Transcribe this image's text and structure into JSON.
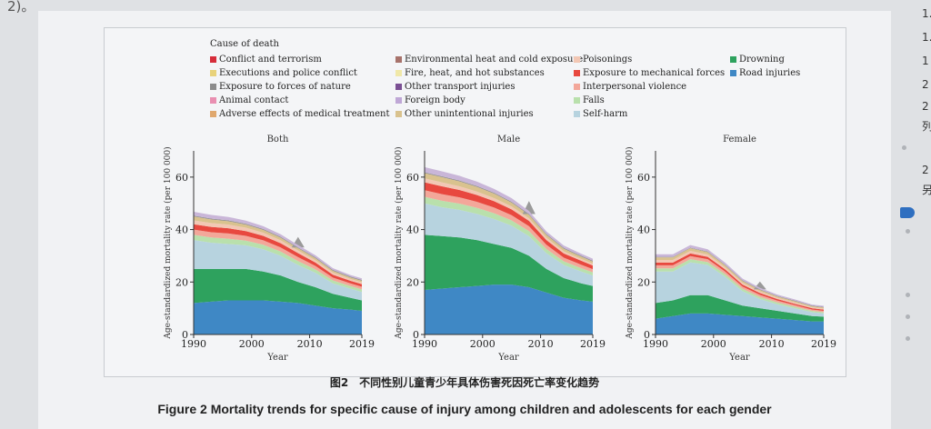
{
  "top_text": "2)。",
  "right_margin": [
    "1.",
    "1.",
    "1",
    "2",
    "2",
    "列",
    "2",
    "另"
  ],
  "legend_title": "Cause of death",
  "legend": [
    {
      "name": "Conflict and terrorism",
      "color": "#d62d3a"
    },
    {
      "name": "Executions and police conflict",
      "color": "#e8d27a"
    },
    {
      "name": "Exposure to forces of nature",
      "color": "#8c8c8c"
    },
    {
      "name": "Animal contact",
      "color": "#e98fb1"
    },
    {
      "name": "Adverse effects of medical treatment",
      "color": "#e0a86e"
    },
    {
      "name": "Environmental heat and cold exposure",
      "color": "#a7726b"
    },
    {
      "name": "Fire, heat, and hot substances",
      "color": "#f0e8a8"
    },
    {
      "name": "Other transport injuries",
      "color": "#7a4f93"
    },
    {
      "name": "Foreign body",
      "color": "#bfa7d6"
    },
    {
      "name": "Other unintentional injuries",
      "color": "#d9c28e"
    },
    {
      "name": "Poisonings",
      "color": "#f2c7b4"
    },
    {
      "name": "Exposure to mechanical forces",
      "color": "#e8483f"
    },
    {
      "name": "Interpersonal violence",
      "color": "#f3a79a"
    },
    {
      "name": "Falls",
      "color": "#b9e0ac"
    },
    {
      "name": "Self-harm",
      "color": "#b7d3df"
    },
    {
      "name": "Drowning",
      "color": "#2ea25e"
    },
    {
      "name": "Road injuries",
      "color": "#3f88c5"
    }
  ],
  "caption_cn": "图2　不同性别儿童青少年具体伤害死因死亡率变化趋势",
  "caption_en": "Figure 2   Mortality trends for specific cause of injury among children and adolescents for each gender",
  "chart_data": [
    {
      "type": "area",
      "title": "Both",
      "xlabel": "Year",
      "ylabel": "Age-standardized mortality rate (per 100 000)",
      "xlim": [
        1990,
        2019
      ],
      "ylim": [
        0,
        70
      ],
      "xticks": [
        1990,
        2000,
        2010,
        2019
      ],
      "yticks": [
        0,
        20,
        40,
        60
      ],
      "x": [
        1990,
        1993,
        1996,
        1999,
        2002,
        2005,
        2008,
        2011,
        2014,
        2017,
        2019
      ],
      "series": [
        {
          "name": "Road injuries",
          "values": [
            12,
            12.5,
            13,
            13,
            13,
            12.5,
            12,
            11,
            10,
            9.5,
            9
          ]
        },
        {
          "name": "Drowning",
          "values": [
            13,
            12.5,
            12,
            12,
            11,
            10,
            8,
            7,
            5.5,
            4.5,
            4
          ]
        },
        {
          "name": "Self-harm",
          "values": [
            11,
            10,
            9.5,
            9,
            8.5,
            7.5,
            6.5,
            5.5,
            4,
            3.5,
            3.2
          ]
        },
        {
          "name": "Falls",
          "values": [
            2,
            2,
            2,
            1.8,
            1.7,
            1.6,
            1.5,
            1.3,
            1.1,
            1,
            1
          ]
        },
        {
          "name": "Interpersonal violence",
          "values": [
            2,
            2,
            2,
            1.8,
            1.7,
            1.6,
            1.5,
            1.3,
            1.1,
            1,
            1
          ]
        },
        {
          "name": "Exposure to mechanical forces",
          "values": [
            2,
            2,
            2,
            1.8,
            1.7,
            1.6,
            1.5,
            1.3,
            1.1,
            1,
            1
          ]
        },
        {
          "name": "Poisonings",
          "values": [
            1.5,
            1.5,
            1.4,
            1.3,
            1.2,
            1.1,
            1,
            0.9,
            0.8,
            0.7,
            0.7
          ]
        },
        {
          "name": "Other unintentional injuries",
          "values": [
            1.5,
            1.4,
            1.3,
            1.2,
            1.1,
            1,
            0.9,
            0.8,
            0.7,
            0.6,
            0.6
          ]
        },
        {
          "name": "Exposure to forces of nature",
          "values": [
            0.3,
            0.3,
            0.3,
            0.3,
            0.3,
            0.3,
            0.3,
            0.3,
            0.3,
            0.3,
            0.3
          ],
          "spike": {
            "x": 2008,
            "value": 4
          }
        },
        {
          "name": "Other",
          "values": [
            1.5,
            1.4,
            1.3,
            1.2,
            1.1,
            1,
            0.9,
            0.8,
            0.7,
            0.6,
            0.6
          ]
        }
      ]
    },
    {
      "type": "area",
      "title": "Male",
      "xlabel": "Year",
      "ylabel": "Age-standardized mortality rate (per 100 000)",
      "xlim": [
        1990,
        2019
      ],
      "ylim": [
        0,
        70
      ],
      "xticks": [
        1990,
        2000,
        2010,
        2019
      ],
      "yticks": [
        0,
        20,
        40,
        60
      ],
      "x": [
        1990,
        1993,
        1996,
        1999,
        2002,
        2005,
        2008,
        2011,
        2014,
        2017,
        2019
      ],
      "series": [
        {
          "name": "Road injuries",
          "values": [
            17,
            17.5,
            18,
            18.5,
            19,
            19,
            18,
            16,
            14,
            13,
            12.5
          ]
        },
        {
          "name": "Drowning",
          "values": [
            21,
            20,
            19,
            17.5,
            15.5,
            14,
            12,
            9,
            7.5,
            6.5,
            6
          ]
        },
        {
          "name": "Self-harm",
          "values": [
            12,
            11,
            10.5,
            10,
            9.5,
            8.5,
            7.5,
            6,
            5,
            4.5,
            4
          ]
        },
        {
          "name": "Falls",
          "values": [
            2.5,
            2.5,
            2.4,
            2.3,
            2.2,
            2,
            1.9,
            1.6,
            1.4,
            1.3,
            1.2
          ]
        },
        {
          "name": "Interpersonal violence",
          "values": [
            2.5,
            2.5,
            2.4,
            2.3,
            2.2,
            2,
            1.9,
            1.6,
            1.4,
            1.3,
            1.2
          ]
        },
        {
          "name": "Exposure to mechanical forces",
          "values": [
            3,
            3,
            2.8,
            2.6,
            2.4,
            2.2,
            2,
            1.8,
            1.6,
            1.5,
            1.4
          ]
        },
        {
          "name": "Poisonings",
          "values": [
            1.5,
            1.5,
            1.4,
            1.3,
            1.2,
            1.1,
            1,
            0.9,
            0.8,
            0.7,
            0.7
          ]
        },
        {
          "name": "Other unintentional injuries",
          "values": [
            2,
            2,
            1.9,
            1.8,
            1.7,
            1.5,
            1.3,
            1.1,
            1,
            0.9,
            0.8
          ]
        },
        {
          "name": "Exposure to forces of nature",
          "values": [
            0.3,
            0.3,
            0.3,
            0.3,
            0.3,
            0.3,
            0.3,
            0.3,
            0.3,
            0.3,
            0.3
          ],
          "spike": {
            "x": 2008,
            "value": 5
          }
        },
        {
          "name": "Other",
          "values": [
            2,
            1.9,
            1.8,
            1.7,
            1.5,
            1.4,
            1.2,
            1,
            0.9,
            0.8,
            0.8
          ]
        }
      ]
    },
    {
      "type": "area",
      "title": "Female",
      "xlabel": "Year",
      "ylabel": "Age-standardized mortality rate (per 100 000)",
      "xlim": [
        1990,
        2019
      ],
      "ylim": [
        0,
        70
      ],
      "xticks": [
        1990,
        2000,
        2010,
        2019
      ],
      "yticks": [
        0,
        20,
        40,
        60
      ],
      "x": [
        1990,
        1993,
        1996,
        1999,
        2002,
        2005,
        2008,
        2011,
        2014,
        2017,
        2019
      ],
      "series": [
        {
          "name": "Road injuries",
          "values": [
            6,
            7,
            8,
            8,
            7.5,
            7,
            6.5,
            6,
            5.5,
            5,
            5
          ]
        },
        {
          "name": "Drowning",
          "values": [
            6,
            6,
            7,
            7,
            5.5,
            4,
            3.5,
            3,
            2.5,
            2,
            1.8
          ]
        },
        {
          "name": "Self-harm",
          "values": [
            12,
            11,
            12.5,
            11.5,
            9,
            5.5,
            3.5,
            2.5,
            2,
            1.5,
            1.2
          ]
        },
        {
          "name": "Falls",
          "values": [
            1.2,
            1.2,
            1.2,
            1.1,
            1,
            0.9,
            0.8,
            0.7,
            0.6,
            0.5,
            0.5
          ]
        },
        {
          "name": "Interpersonal violence",
          "values": [
            1.2,
            1.2,
            1.2,
            1.1,
            1,
            0.9,
            0.8,
            0.7,
            0.6,
            0.5,
            0.5
          ]
        },
        {
          "name": "Exposure to mechanical forces",
          "values": [
            1,
            1,
            1,
            0.9,
            0.8,
            0.7,
            0.7,
            0.6,
            0.5,
            0.5,
            0.5
          ]
        },
        {
          "name": "Poisonings",
          "values": [
            1,
            1,
            1,
            0.9,
            0.8,
            0.7,
            0.6,
            0.5,
            0.5,
            0.4,
            0.4
          ]
        },
        {
          "name": "Other unintentional injuries",
          "values": [
            1,
            1,
            1,
            0.9,
            0.8,
            0.7,
            0.6,
            0.5,
            0.5,
            0.4,
            0.4
          ]
        },
        {
          "name": "Exposure to forces of nature",
          "values": [
            0.2,
            0.2,
            0.2,
            0.2,
            0.2,
            0.2,
            0.2,
            0.2,
            0.2,
            0.2,
            0.2
          ],
          "spike": {
            "x": 2008,
            "value": 3
          }
        },
        {
          "name": "Other",
          "values": [
            1,
            1,
            1,
            0.9,
            0.8,
            0.7,
            0.6,
            0.5,
            0.5,
            0.4,
            0.4
          ]
        }
      ]
    }
  ]
}
